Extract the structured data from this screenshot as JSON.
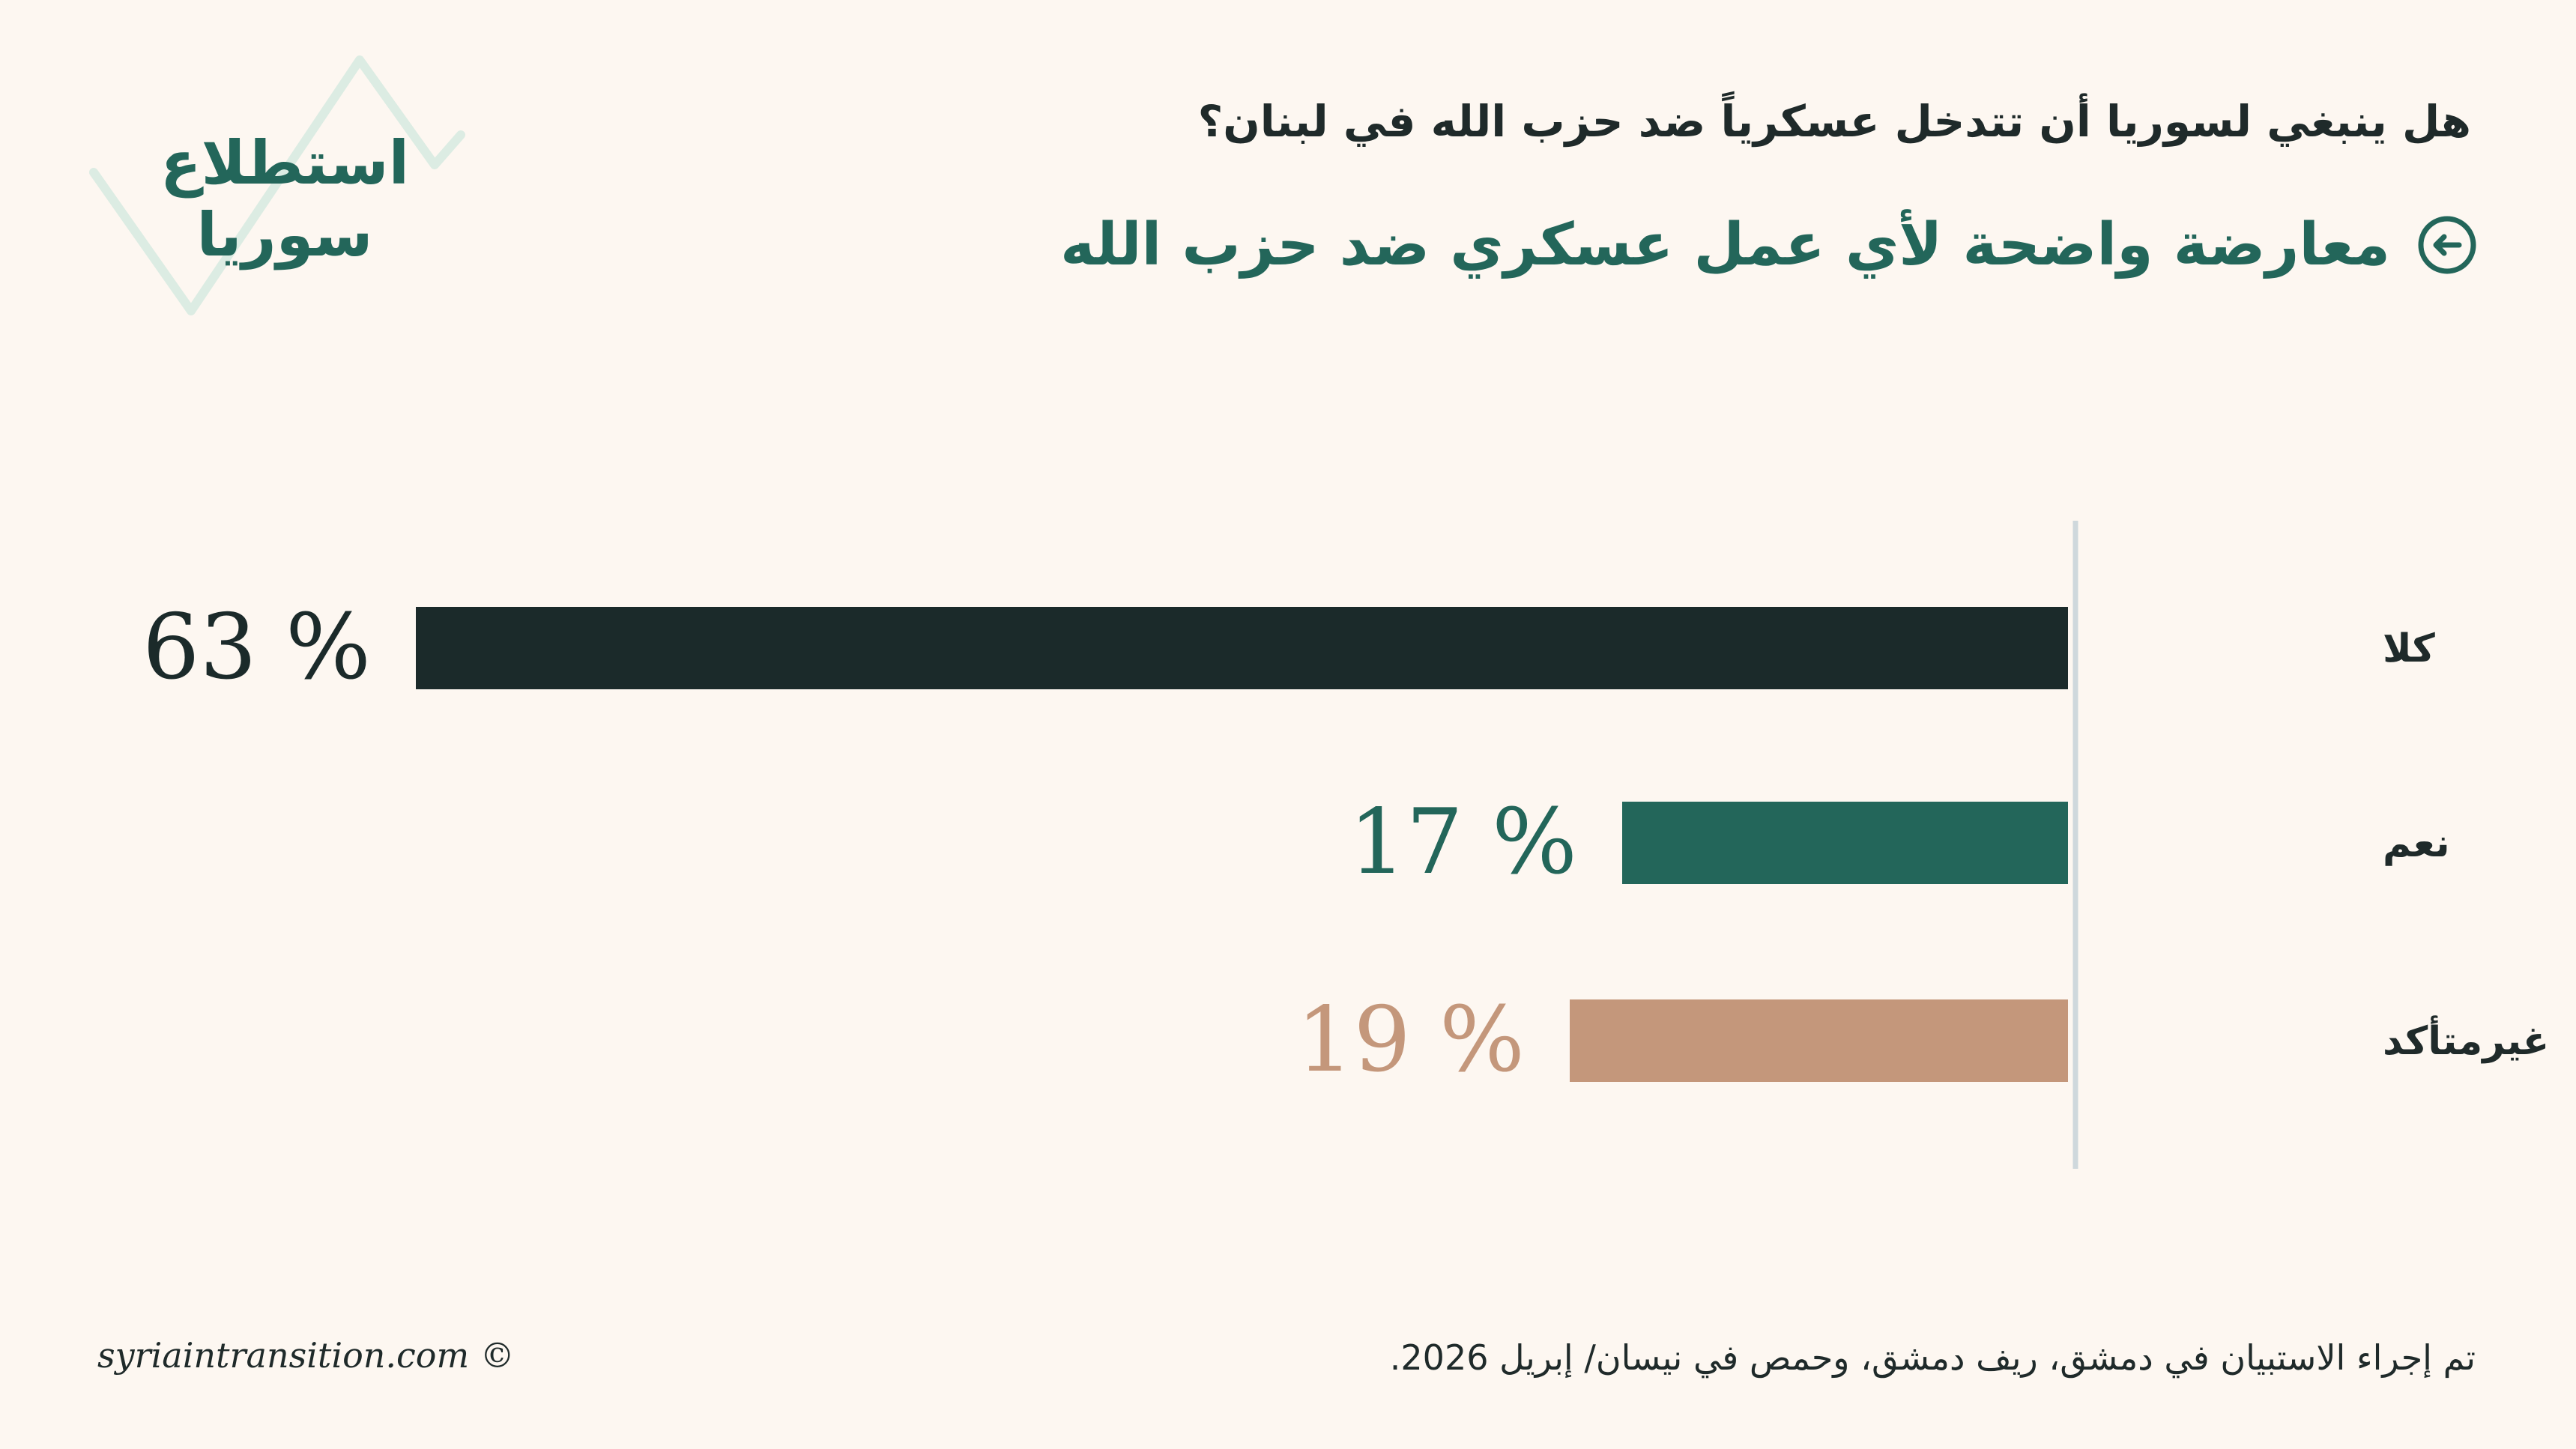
{
  "logo": {
    "line1": "استطلاع",
    "line2": "سوريا",
    "zigzag_color": "#dcece3"
  },
  "question": "هل ينبغي لسوريا أن تتدخل عسكرياً ضد حزب الله في لبنان؟",
  "headline": {
    "text": "معارضة واضحة لأي عمل عسكري ضد حزب الله",
    "icon": "circle-arrow-left-icon"
  },
  "chart_data": {
    "type": "bar",
    "orientation": "horizontal",
    "direction": "right-to-left",
    "categories": [
      "كلا",
      "نعم",
      "غيرمتأكد"
    ],
    "values": [
      63,
      17,
      19
    ],
    "value_labels": [
      "63 %",
      "17 %",
      "19 %"
    ],
    "colors": [
      "#1b2a2a",
      "#23665a",
      "#c4977b"
    ],
    "xlim": [
      0,
      100
    ],
    "grid": false,
    "legend": "none"
  },
  "footer": {
    "note": "تم إجراء الاستبيان في دمشق، ريف دمشق، وحمص في نيسان/ إبريل 2026.",
    "copyright": "syriaintransition.com ©"
  },
  "colors": {
    "background": "#fdf7f1",
    "accent": "#23665a",
    "axis": "#cfd8dc",
    "text": "#1f2a2a"
  }
}
